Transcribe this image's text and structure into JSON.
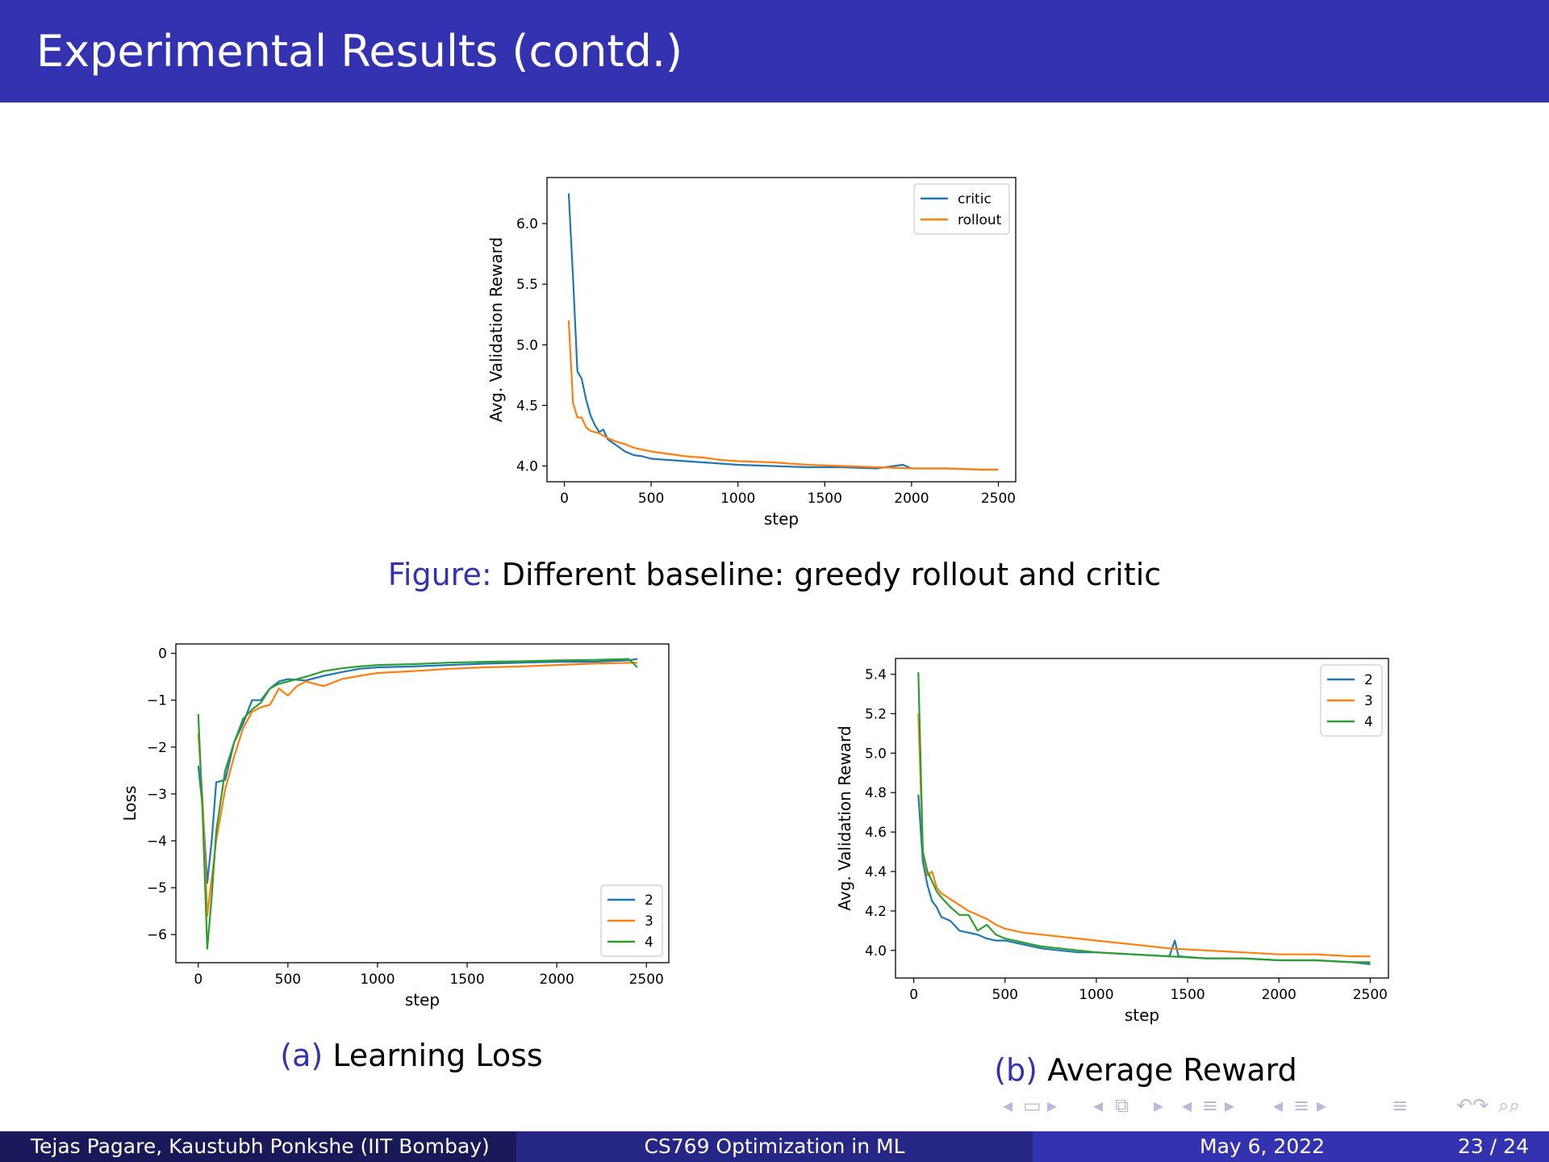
{
  "slide": {
    "title": "Experimental Results (contd.)",
    "captions": {
      "top_prefix": "Figure:",
      "top_text": "Different baseline: greedy rollout and critic",
      "a_prefix": "(a)",
      "a_text": "Learning Loss",
      "b_prefix": "(b)",
      "b_text": "Average Reward"
    }
  },
  "footer": {
    "authors": "Tejas Pagare, Kaustubh Ponkshe  (IIT Bombay)",
    "course": "CS769 Optimization in ML",
    "date": "May 6, 2022",
    "page": "23 / 24"
  },
  "navigation": {
    "icons": [
      "nav-left-arrow-icon",
      "nav-frame-icon",
      "nav-right-arrow-icon",
      "nav-left-arrow-icon",
      "nav-subsection-icon",
      "nav-right-arrow-icon",
      "nav-left-arrow-icon",
      "nav-section-icon",
      "nav-right-arrow-icon",
      "nav-left-arrow-icon",
      "nav-doc-icon",
      "nav-right-arrow-icon",
      "nav-align-icon",
      "nav-back-icon",
      "nav-search-icon"
    ]
  },
  "colors": {
    "title_bar": "#3333b2",
    "footer_left": "#191959",
    "footer_mid": "#262686",
    "footer_right": "#3333b2",
    "series_blue": "#1f77b4",
    "series_orange": "#ff7f0e",
    "series_green": "#2ca02c"
  },
  "chart_data": [
    {
      "type": "line",
      "xlabel": "step",
      "ylabel": "Avg. Validation Reward",
      "xlim": [
        -100,
        2600
      ],
      "ylim": [
        3.87,
        6.38
      ],
      "xticks": [
        0,
        500,
        1000,
        1500,
        2000,
        2500
      ],
      "yticks": [
        4.0,
        4.5,
        5.0,
        5.5,
        6.0
      ],
      "ytick_labels": [
        "4.0",
        "4.5",
        "5.0",
        "5.5",
        "6.0"
      ],
      "legend_position": "upper-right",
      "grid": false,
      "series": [
        {
          "name": "critic",
          "color": "#1f77b4",
          "x": [
            25,
            50,
            75,
            100,
            125,
            150,
            175,
            200,
            225,
            250,
            300,
            350,
            400,
            450,
            500,
            600,
            700,
            800,
            900,
            1000,
            1200,
            1400,
            1600,
            1800,
            1950,
            2000,
            2200,
            2400,
            2500
          ],
          "y": [
            6.25,
            5.55,
            4.78,
            4.72,
            4.55,
            4.42,
            4.34,
            4.28,
            4.3,
            4.22,
            4.17,
            4.12,
            4.09,
            4.08,
            4.06,
            4.05,
            4.04,
            4.03,
            4.02,
            4.01,
            4.0,
            3.99,
            3.99,
            3.98,
            4.01,
            3.98,
            3.98,
            3.97,
            3.97
          ]
        },
        {
          "name": "rollout",
          "color": "#ff7f0e",
          "x": [
            25,
            50,
            75,
            100,
            125,
            150,
            200,
            250,
            300,
            350,
            400,
            500,
            600,
            700,
            800,
            900,
            1000,
            1200,
            1400,
            1600,
            1800,
            2000,
            2200,
            2400,
            2500
          ],
          "y": [
            5.2,
            4.52,
            4.4,
            4.4,
            4.32,
            4.29,
            4.27,
            4.23,
            4.2,
            4.18,
            4.15,
            4.12,
            4.1,
            4.08,
            4.07,
            4.05,
            4.04,
            4.03,
            4.01,
            4.0,
            3.99,
            3.98,
            3.98,
            3.97,
            3.97
          ]
        }
      ]
    },
    {
      "type": "line",
      "xlabel": "step",
      "ylabel": "Loss",
      "xlim": [
        -125,
        2625
      ],
      "ylim": [
        -6.6,
        0.2
      ],
      "xticks": [
        0,
        500,
        1000,
        1500,
        2000,
        2500
      ],
      "yticks": [
        0,
        -1,
        -2,
        -3,
        -4,
        -5,
        -6
      ],
      "ytick_labels": [
        "0",
        "−1",
        "−2",
        "−3",
        "−4",
        "−5",
        "−6"
      ],
      "legend_position": "lower-right",
      "grid": false,
      "series": [
        {
          "name": "2",
          "color": "#1f77b4",
          "x": [
            0,
            25,
            50,
            75,
            100,
            150,
            200,
            250,
            300,
            350,
            400,
            450,
            500,
            600,
            700,
            800,
            900,
            1000,
            1200,
            1400,
            1600,
            1800,
            2000,
            2200,
            2400,
            2450
          ],
          "y": [
            -2.4,
            -3.3,
            -4.9,
            -4.0,
            -2.75,
            -2.7,
            -1.9,
            -1.5,
            -1.0,
            -1.0,
            -0.75,
            -0.6,
            -0.55,
            -0.58,
            -0.48,
            -0.4,
            -0.33,
            -0.3,
            -0.28,
            -0.25,
            -0.22,
            -0.2,
            -0.18,
            -0.18,
            -0.15,
            -0.12
          ]
        },
        {
          "name": "3",
          "color": "#ff7f0e",
          "x": [
            0,
            25,
            50,
            75,
            100,
            150,
            200,
            250,
            300,
            350,
            400,
            450,
            500,
            550,
            600,
            700,
            800,
            900,
            1000,
            1200,
            1400,
            1600,
            1800,
            2000,
            2200,
            2450
          ],
          "y": [
            -1.7,
            -3.2,
            -5.6,
            -4.8,
            -4.0,
            -2.9,
            -2.2,
            -1.6,
            -1.25,
            -1.15,
            -1.1,
            -0.75,
            -0.9,
            -0.7,
            -0.6,
            -0.7,
            -0.55,
            -0.48,
            -0.42,
            -0.38,
            -0.33,
            -0.3,
            -0.28,
            -0.25,
            -0.22,
            -0.2
          ]
        },
        {
          "name": "4",
          "color": "#2ca02c",
          "x": [
            0,
            25,
            50,
            75,
            100,
            150,
            200,
            250,
            300,
            350,
            400,
            450,
            500,
            600,
            700,
            800,
            900,
            1000,
            1200,
            1400,
            1600,
            1800,
            2000,
            2200,
            2400,
            2450
          ],
          "y": [
            -1.3,
            -3.5,
            -6.3,
            -5.2,
            -3.8,
            -2.5,
            -1.9,
            -1.4,
            -1.2,
            -1.05,
            -0.75,
            -0.65,
            -0.6,
            -0.5,
            -0.38,
            -0.32,
            -0.28,
            -0.25,
            -0.23,
            -0.2,
            -0.18,
            -0.17,
            -0.15,
            -0.14,
            -0.12,
            -0.3
          ]
        }
      ]
    },
    {
      "type": "line",
      "xlabel": "step",
      "ylabel": "Avg. Validation Reward",
      "xlim": [
        -100,
        2600
      ],
      "ylim": [
        3.86,
        5.48
      ],
      "xticks": [
        0,
        500,
        1000,
        1500,
        2000,
        2500
      ],
      "yticks": [
        4.0,
        4.2,
        4.4,
        4.6,
        4.8,
        5.0,
        5.2,
        5.4
      ],
      "ytick_labels": [
        "4.0",
        "4.2",
        "4.4",
        "4.6",
        "4.8",
        "5.0",
        "5.2",
        "5.4"
      ],
      "legend_position": "upper-right",
      "grid": false,
      "series": [
        {
          "name": "2",
          "color": "#1f77b4",
          "x": [
            25,
            50,
            75,
            100,
            125,
            150,
            200,
            250,
            300,
            350,
            400,
            450,
            500,
            600,
            700,
            800,
            900,
            1000,
            1200,
            1400,
            1430,
            1450,
            1600,
            1800,
            2000,
            2200,
            2400,
            2500
          ],
          "y": [
            4.79,
            4.45,
            4.33,
            4.25,
            4.22,
            4.17,
            4.15,
            4.1,
            4.09,
            4.08,
            4.06,
            4.05,
            4.05,
            4.03,
            4.01,
            4.0,
            3.99,
            3.99,
            3.98,
            3.97,
            4.05,
            3.97,
            3.96,
            3.96,
            3.95,
            3.95,
            3.94,
            3.93
          ]
        },
        {
          "name": "3",
          "color": "#ff7f0e",
          "x": [
            25,
            50,
            75,
            100,
            125,
            150,
            200,
            250,
            300,
            350,
            400,
            450,
            500,
            600,
            700,
            800,
            900,
            1000,
            1200,
            1400,
            1600,
            1800,
            2000,
            2200,
            2400,
            2500
          ],
          "y": [
            5.2,
            4.5,
            4.38,
            4.4,
            4.32,
            4.29,
            4.26,
            4.23,
            4.2,
            4.18,
            4.16,
            4.13,
            4.11,
            4.09,
            4.08,
            4.07,
            4.06,
            4.05,
            4.03,
            4.01,
            4.0,
            3.99,
            3.98,
            3.98,
            3.97,
            3.97
          ]
        },
        {
          "name": "4",
          "color": "#2ca02c",
          "x": [
            25,
            50,
            75,
            100,
            125,
            150,
            200,
            250,
            300,
            350,
            400,
            450,
            500,
            600,
            700,
            800,
            900,
            1000,
            1200,
            1400,
            1600,
            1800,
            2000,
            2200,
            2400,
            2500
          ],
          "y": [
            5.41,
            4.5,
            4.4,
            4.35,
            4.3,
            4.27,
            4.22,
            4.18,
            4.18,
            4.1,
            4.13,
            4.08,
            4.06,
            4.04,
            4.02,
            4.01,
            4.0,
            3.99,
            3.98,
            3.97,
            3.96,
            3.96,
            3.95,
            3.95,
            3.94,
            3.94
          ]
        }
      ]
    }
  ]
}
